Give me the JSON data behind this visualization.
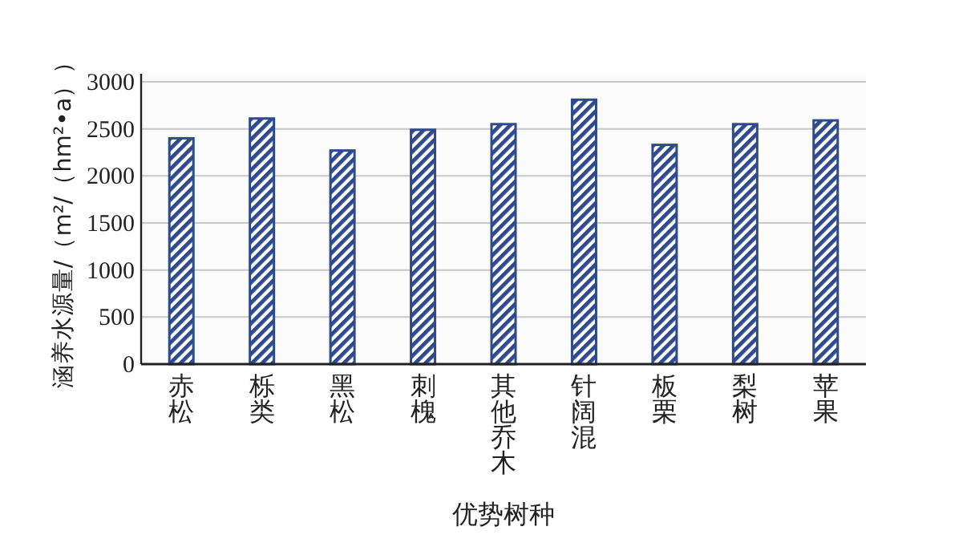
{
  "chart_data": {
    "type": "bar",
    "xlabel": "优势树种",
    "ylabel": "涵养水源量/（m²/（hm²•a））",
    "categories": [
      "赤松",
      "栎类",
      "黑松",
      "刺槐",
      "其他乔木",
      "针阔混",
      "板栗",
      "梨树",
      "苹果"
    ],
    "values": [
      2400,
      2610,
      2270,
      2490,
      2550,
      2810,
      2330,
      2550,
      2590
    ],
    "color": "#2e4a8c",
    "ylim": [
      0,
      3000
    ],
    "yticks": [
      0,
      500,
      1000,
      1500,
      2000,
      2500,
      3000
    ],
    "grid": "y"
  }
}
